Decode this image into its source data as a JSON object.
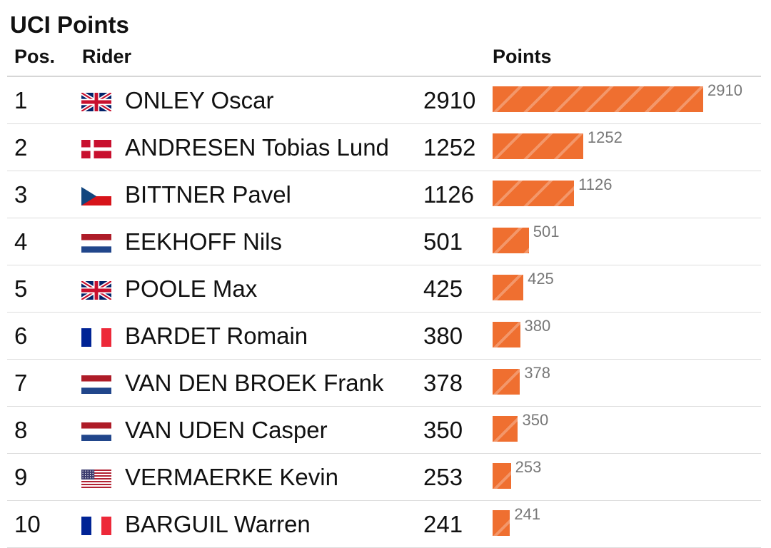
{
  "title": "UCI Points",
  "headers": {
    "pos": "Pos.",
    "rider": "Rider",
    "points": "Points"
  },
  "colors": {
    "bar": "#ef6f30",
    "bar_label": "#777777",
    "separator": "#dddddd"
  },
  "chart_data": {
    "type": "bar",
    "orientation": "horizontal",
    "title": "UCI Points",
    "categories": [
      "ONLEY Oscar",
      "ANDRESEN Tobias Lund",
      "BITTNER Pavel",
      "EEKHOFF Nils",
      "POOLE Max",
      "BARDET Romain",
      "VAN DEN BROEK Frank",
      "VAN UDEN Casper",
      "VERMAERKE Kevin",
      "BARGUIL Warren"
    ],
    "values": [
      2910,
      1252,
      1126,
      501,
      425,
      380,
      378,
      350,
      253,
      241
    ],
    "xlim": [
      0,
      2910
    ],
    "grid": false,
    "legend": "none"
  },
  "rows": [
    {
      "pos": "1",
      "name": "ONLEY Oscar",
      "flag": "gb-flag-icon",
      "points": 2910,
      "points_text": "2910",
      "bar_label": "2910"
    },
    {
      "pos": "2",
      "name": "ANDRESEN Tobias Lund",
      "flag": "dk-flag-icon",
      "points": 1252,
      "points_text": "1252",
      "bar_label": "1252"
    },
    {
      "pos": "3",
      "name": "BITTNER Pavel",
      "flag": "cz-flag-icon",
      "points": 1126,
      "points_text": "1126",
      "bar_label": "1126"
    },
    {
      "pos": "4",
      "name": "EEKHOFF Nils",
      "flag": "nl-flag-icon",
      "points": 501,
      "points_text": "501",
      "bar_label": "501"
    },
    {
      "pos": "5",
      "name": "POOLE Max",
      "flag": "gb-flag-icon",
      "points": 425,
      "points_text": "425",
      "bar_label": "425"
    },
    {
      "pos": "6",
      "name": "BARDET Romain",
      "flag": "fr-flag-icon",
      "points": 380,
      "points_text": "380",
      "bar_label": "380"
    },
    {
      "pos": "7",
      "name": "VAN DEN BROEK Frank",
      "flag": "nl-flag-icon",
      "points": 378,
      "points_text": "378",
      "bar_label": "378"
    },
    {
      "pos": "8",
      "name": "VAN UDEN Casper",
      "flag": "nl-flag-icon",
      "points": 350,
      "points_text": "350",
      "bar_label": "350"
    },
    {
      "pos": "9",
      "name": "VERMAERKE Kevin",
      "flag": "us-flag-icon",
      "points": 253,
      "points_text": "253",
      "bar_label": "253"
    },
    {
      "pos": "10",
      "name": "BARGUIL Warren",
      "flag": "fr-flag-icon",
      "points": 241,
      "points_text": "241",
      "bar_label": "241"
    }
  ]
}
